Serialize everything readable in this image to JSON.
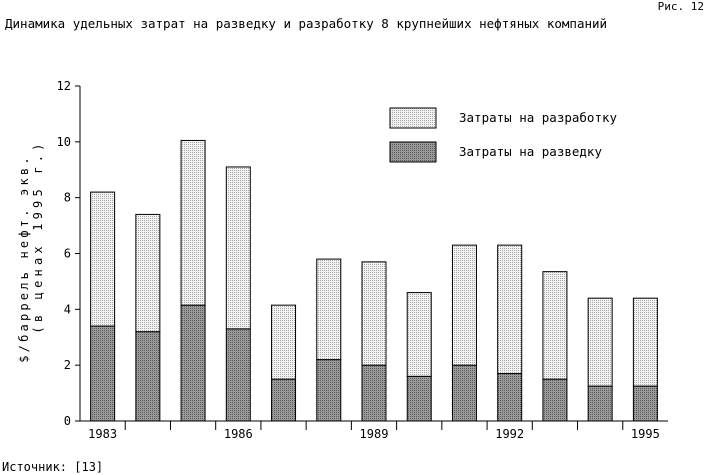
{
  "figure_label": "Рис. 12",
  "source_text": "Источник: [13]",
  "chart_data": {
    "type": "bar",
    "stacked": true,
    "title": "Динамика удельных затрат на разведку и разработку 8 крупнейших нефтяных компаний",
    "ylabel_line1": "$/баррель нефт. экв.",
    "ylabel_line2": "(в ценах 1995 г.)",
    "ylim": [
      0,
      12
    ],
    "yticks": [
      0,
      2,
      4,
      6,
      8,
      10,
      12
    ],
    "categories": [
      "1983",
      "1984",
      "1985",
      "1986",
      "1987",
      "1988",
      "1989",
      "1990",
      "1991",
      "1992",
      "1993",
      "1994",
      "1995"
    ],
    "x_tick_labels": [
      "1983",
      "",
      "",
      "1986",
      "",
      "",
      "1989",
      "",
      "",
      "1992",
      "",
      "",
      "1995"
    ],
    "series": [
      {
        "name": "Затраты на разведку",
        "color": "#8c8c8c",
        "values": [
          3.4,
          3.2,
          4.15,
          3.3,
          1.5,
          2.2,
          2.0,
          1.6,
          2.0,
          1.7,
          1.5,
          1.25,
          1.25
        ]
      },
      {
        "name": "Затраты на разработку",
        "color": "#e3e3e3",
        "values": [
          4.8,
          4.2,
          5.9,
          5.8,
          2.65,
          3.6,
          3.7,
          3.0,
          4.3,
          4.6,
          3.85,
          3.15,
          3.15
        ]
      }
    ],
    "legend_position": "top-right",
    "grid": false
  }
}
